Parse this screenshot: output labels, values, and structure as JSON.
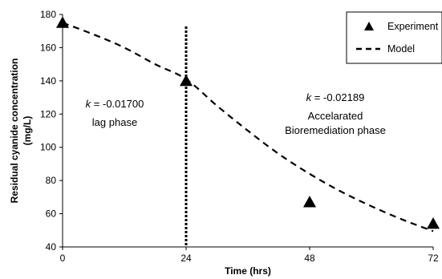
{
  "chart_data": {
    "type": "scatter",
    "xlabel": "Time (hrs)",
    "ylabel_line1": "Residual cyanide concentration",
    "ylabel_line2": "(mg/L)",
    "x_ticks": [
      "0",
      "24",
      "48",
      "72"
    ],
    "y_ticks": [
      "40",
      "60",
      "80",
      "100",
      "120",
      "140",
      "160",
      "180"
    ],
    "xlim": [
      0,
      72
    ],
    "ylim": [
      40,
      180
    ],
    "grid": false,
    "legend_position": "top-right",
    "series": [
      {
        "name": "Experiment",
        "marker": "triangle",
        "color": "#000000",
        "x": [
          0,
          24,
          48,
          72
        ],
        "y": [
          175,
          140,
          67,
          54
        ]
      },
      {
        "name": "Model",
        "style": "dashed",
        "color": "#000000",
        "x": [
          0,
          6,
          12,
          18,
          24,
          30,
          36,
          42,
          48,
          54,
          60,
          66,
          72
        ],
        "y": [
          175,
          168,
          160,
          150,
          141,
          125,
          110,
          96,
          84,
          73.5,
          64.5,
          56.5,
          49.5
        ]
      }
    ],
    "vertical_line": {
      "x": 24,
      "style": "dashed",
      "color": "#000000"
    },
    "annotations": [
      {
        "k_symbol": "k",
        "k_value": " = -0.01700",
        "line2": "lag phase"
      },
      {
        "k_symbol": "k",
        "k_value": " = -0.02189",
        "line2": "Accelarated",
        "line3": "Bioremediation phase"
      }
    ]
  }
}
